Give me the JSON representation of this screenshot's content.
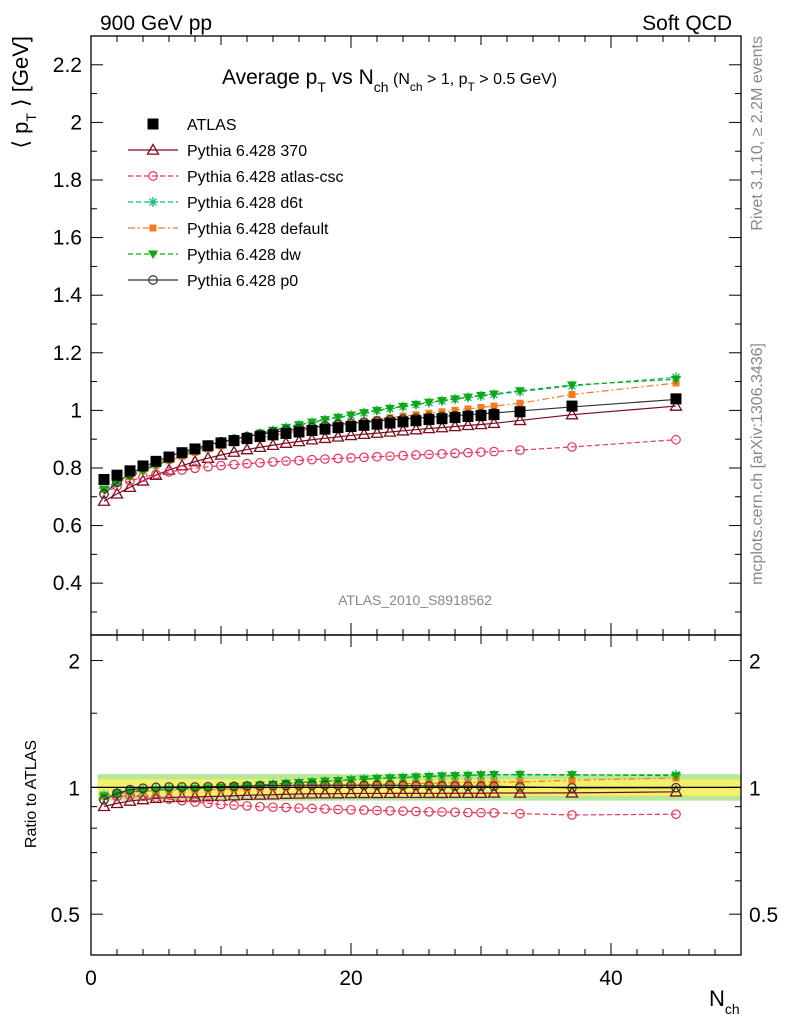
{
  "header": {
    "left": "900 GeV pp",
    "right": "Soft QCD"
  },
  "side_labels": {
    "rivet": "Rivet 3.1.10, ≥ 2.2M events",
    "mcplots": "mcplots.cern.ch [arXiv:1306.3436]"
  },
  "chart_data": {
    "type": "scatter",
    "title": "Average p_T vs N_ch (N_ch > 1, p_T > 0.5 GeV)",
    "title_parts": {
      "main": "Average p",
      "main_sub": "T",
      "vs": " vs N",
      "vs_sub": "ch",
      "cond_a": " (N",
      "cond_a_sub": "ch",
      "cond_b": " > 1, p",
      "cond_b_sub": "T",
      "cond_c": " > 0.5 GeV)"
    },
    "analysis_label": "ATLAS_2010_S8918562",
    "ylabel": "⟨ p_T ⟩  [GeV]",
    "ylabel_parts": {
      "open": "⟨ p",
      "sub": "T",
      "close": " ⟩  [GeV]"
    },
    "xlabel": "N_ch",
    "xlabel_parts": {
      "main": "N",
      "sub": "ch"
    },
    "ratio_ylabel": "Ratio to ATLAS",
    "xlim": [
      0,
      50
    ],
    "ylim": [
      0.22,
      2.3
    ],
    "ratio_ylim": [
      0.4,
      2.3
    ],
    "ratio_log": true,
    "xticks": [
      0,
      20,
      40
    ],
    "xtick_labels": [
      "0",
      "20",
      "40"
    ],
    "yticks": [
      0.4,
      0.6,
      0.8,
      1,
      1.2,
      1.4,
      1.6,
      1.8,
      2,
      2.2
    ],
    "ytick_labels": [
      "0.4",
      "0.6",
      "0.8",
      "1",
      "1.2",
      "1.4",
      "1.6",
      "1.8",
      "2",
      "2.2"
    ],
    "ratio_yticks": [
      0.5,
      1,
      2
    ],
    "ratio_ytick_labels": [
      "0.5",
      "1",
      "2"
    ],
    "legend_position": "top-left",
    "x": [
      1,
      2,
      3,
      4,
      5,
      6,
      7,
      8,
      9,
      10,
      11,
      12,
      13,
      14,
      15,
      16,
      17,
      18,
      19,
      20,
      21,
      22,
      23,
      24,
      25,
      26,
      27,
      28,
      29,
      30,
      31,
      33,
      37,
      45
    ],
    "series": [
      {
        "name": "ATLAS",
        "color": "#000000",
        "marker": "square",
        "line": "none",
        "values": [
          0.76,
          0.775,
          0.79,
          0.807,
          0.823,
          0.838,
          0.853,
          0.866,
          0.877,
          0.887,
          0.895,
          0.902,
          0.909,
          0.915,
          0.92,
          0.925,
          0.93,
          0.935,
          0.94,
          0.944,
          0.948,
          0.952,
          0.956,
          0.96,
          0.964,
          0.968,
          0.971,
          0.975,
          0.979,
          0.982,
          0.985,
          0.995,
          1.015,
          1.04
        ]
      },
      {
        "name": "Pythia 6.428 370",
        "color": "#7b0c1f",
        "marker": "triangle-open",
        "line": "solid",
        "values": [
          0.685,
          0.71,
          0.733,
          0.755,
          0.775,
          0.793,
          0.808,
          0.822,
          0.834,
          0.845,
          0.855,
          0.864,
          0.872,
          0.879,
          0.886,
          0.892,
          0.898,
          0.903,
          0.908,
          0.913,
          0.917,
          0.921,
          0.925,
          0.929,
          0.933,
          0.937,
          0.94,
          0.944,
          0.948,
          0.951,
          0.955,
          0.965,
          0.985,
          1.015
        ]
      },
      {
        "name": "Pythia 6.428 atlas-csc",
        "color": "#e8325a",
        "marker": "circle-open",
        "line": "dashed",
        "values": [
          0.71,
          0.737,
          0.755,
          0.768,
          0.778,
          0.786,
          0.793,
          0.799,
          0.804,
          0.808,
          0.812,
          0.815,
          0.818,
          0.821,
          0.824,
          0.826,
          0.829,
          0.831,
          0.833,
          0.835,
          0.837,
          0.839,
          0.841,
          0.843,
          0.845,
          0.847,
          0.849,
          0.851,
          0.853,
          0.855,
          0.857,
          0.862,
          0.873,
          0.898
        ]
      },
      {
        "name": "Pythia 6.428 d6t",
        "color": "#19b88a",
        "marker": "star",
        "line": "dashed",
        "values": [
          0.73,
          0.753,
          0.775,
          0.795,
          0.815,
          0.833,
          0.849,
          0.863,
          0.876,
          0.888,
          0.899,
          0.91,
          0.92,
          0.93,
          0.94,
          0.949,
          0.958,
          0.967,
          0.975,
          0.983,
          0.991,
          0.999,
          1.006,
          1.013,
          1.02,
          1.027,
          1.033,
          1.039,
          1.045,
          1.05,
          1.055,
          1.065,
          1.085,
          1.115
        ]
      },
      {
        "name": "Pythia 6.428 default",
        "color": "#f47c1e",
        "marker": "square",
        "line": "dashdot",
        "values": [
          0.725,
          0.748,
          0.77,
          0.79,
          0.808,
          0.825,
          0.84,
          0.854,
          0.866,
          0.877,
          0.887,
          0.896,
          0.905,
          0.913,
          0.921,
          0.929,
          0.936,
          0.943,
          0.95,
          0.956,
          0.962,
          0.968,
          0.974,
          0.98,
          0.985,
          0.99,
          0.995,
          1.0,
          1.005,
          1.01,
          1.015,
          1.025,
          1.055,
          1.095
        ]
      },
      {
        "name": "Pythia 6.428 dw",
        "color": "#0ea90e",
        "marker": "triangle-down",
        "line": "dashed",
        "values": [
          0.725,
          0.748,
          0.77,
          0.79,
          0.81,
          0.828,
          0.845,
          0.86,
          0.874,
          0.887,
          0.899,
          0.91,
          0.921,
          0.931,
          0.941,
          0.95,
          0.959,
          0.968,
          0.976,
          0.984,
          0.992,
          1.0,
          1.007,
          1.014,
          1.021,
          1.028,
          1.034,
          1.04,
          1.046,
          1.052,
          1.057,
          1.068,
          1.088,
          1.108
        ]
      },
      {
        "name": "Pythia 6.428 p0",
        "color": "#333333",
        "marker": "circle-open",
        "line": "solid",
        "values": [
          0.71,
          0.75,
          0.78,
          0.803,
          0.823,
          0.84,
          0.855,
          0.868,
          0.88,
          0.891,
          0.9,
          0.909,
          0.917,
          0.924,
          0.93,
          0.936,
          0.941,
          0.946,
          0.951,
          0.955,
          0.959,
          0.963,
          0.967,
          0.97,
          0.973,
          0.976,
          0.979,
          0.982,
          0.985,
          0.988,
          0.991,
          0.998,
          1.012,
          1.038
        ]
      }
    ],
    "ratio_band": {
      "inner_color": "#f5f06a",
      "outer_color": "#b7e89a",
      "x": [
        0.5,
        50
      ],
      "inner": [
        0.955,
        1.045
      ],
      "outer": [
        0.93,
        1.075
      ]
    }
  }
}
